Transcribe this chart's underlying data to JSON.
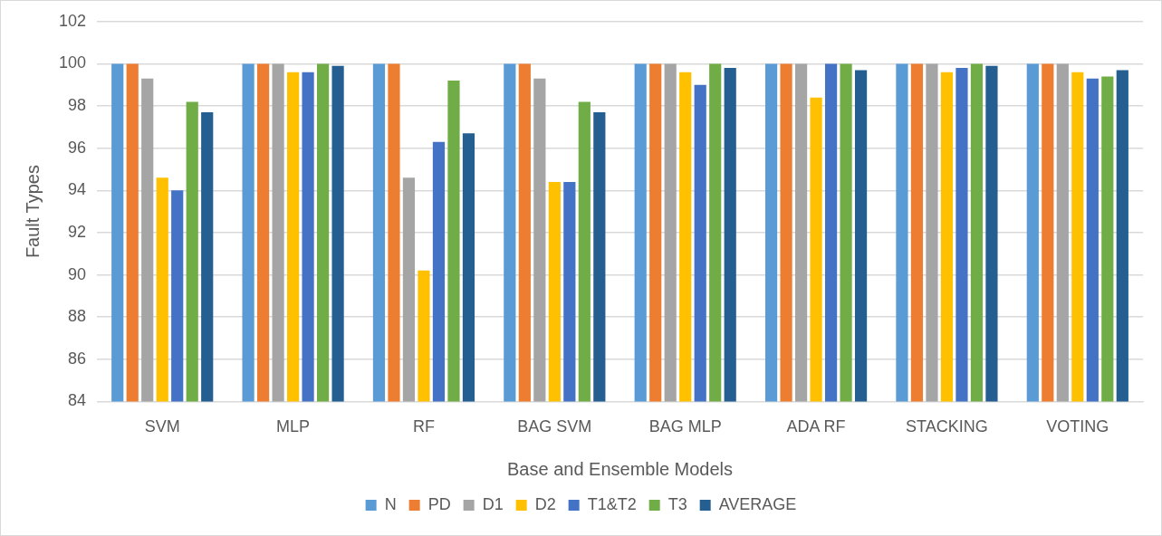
{
  "chart_data": {
    "type": "bar",
    "xlabel": "Base and Ensemble Models",
    "ylabel": "Fault Types",
    "categories": [
      "SVM",
      "MLP",
      "RF",
      "BAG SVM",
      "BAG MLP",
      "ADA RF",
      "STACKING",
      "VOTING"
    ],
    "series": [
      {
        "name": "N",
        "color": "#5b9bd5",
        "values": [
          100,
          100,
          100,
          100,
          100,
          100,
          100,
          100
        ]
      },
      {
        "name": "PD",
        "color": "#ed7d31",
        "values": [
          100,
          100,
          100,
          100,
          100,
          100,
          100,
          100
        ]
      },
      {
        "name": "D1",
        "color": "#a5a5a5",
        "values": [
          99.3,
          100,
          94.6,
          99.3,
          100,
          100,
          100,
          100
        ]
      },
      {
        "name": "D2",
        "color": "#ffc000",
        "values": [
          94.6,
          99.6,
          90.2,
          94.4,
          99.6,
          98.4,
          99.6,
          99.6
        ]
      },
      {
        "name": "T1&T2",
        "color": "#4472c4",
        "values": [
          94.0,
          99.6,
          96.3,
          94.4,
          99.0,
          100,
          99.8,
          99.3
        ]
      },
      {
        "name": "T3",
        "color": "#70ad47",
        "values": [
          98.2,
          100,
          99.2,
          98.2,
          100,
          100,
          100,
          99.4
        ]
      },
      {
        "name": "AVERAGE",
        "color": "#255e91",
        "values": [
          97.7,
          99.9,
          96.7,
          97.7,
          99.8,
          99.7,
          99.9,
          99.7
        ]
      }
    ],
    "ylim": [
      84,
      102
    ],
    "yticks": [
      84,
      86,
      88,
      90,
      92,
      94,
      96,
      98,
      100,
      102
    ],
    "grid": "y",
    "legend": "bottom"
  }
}
